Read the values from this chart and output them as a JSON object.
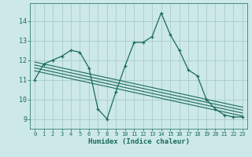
{
  "xlabel": "Humidex (Indice chaleur)",
  "bg_color": "#cce8e8",
  "grid_color": "#aacccc",
  "line_color": "#1a6b5a",
  "xlim": [
    -0.5,
    23.5
  ],
  "ylim": [
    8.5,
    14.9
  ],
  "yticks": [
    9,
    10,
    11,
    12,
    13,
    14
  ],
  "xticks": [
    0,
    1,
    2,
    3,
    4,
    5,
    6,
    7,
    8,
    9,
    10,
    11,
    12,
    13,
    14,
    15,
    16,
    17,
    18,
    19,
    20,
    21,
    22,
    23
  ],
  "main_x": [
    0,
    1,
    2,
    3,
    4,
    5,
    6,
    7,
    8,
    9,
    10,
    11,
    12,
    13,
    14,
    15,
    16,
    17,
    18,
    19,
    20,
    21,
    22,
    23
  ],
  "main_y": [
    11.0,
    11.8,
    12.0,
    12.2,
    12.5,
    12.4,
    11.6,
    9.5,
    9.0,
    10.4,
    11.7,
    12.9,
    12.9,
    13.2,
    14.4,
    13.3,
    12.5,
    11.5,
    11.2,
    10.0,
    9.5,
    9.2,
    9.1,
    9.1
  ],
  "trend_lines": [
    [
      [
        0,
        23
      ],
      [
        11.9,
        9.6
      ]
    ],
    [
      [
        0,
        23
      ],
      [
        11.75,
        9.45
      ]
    ],
    [
      [
        0,
        23
      ],
      [
        11.6,
        9.3
      ]
    ],
    [
      [
        0,
        23
      ],
      [
        11.45,
        9.15
      ]
    ]
  ]
}
